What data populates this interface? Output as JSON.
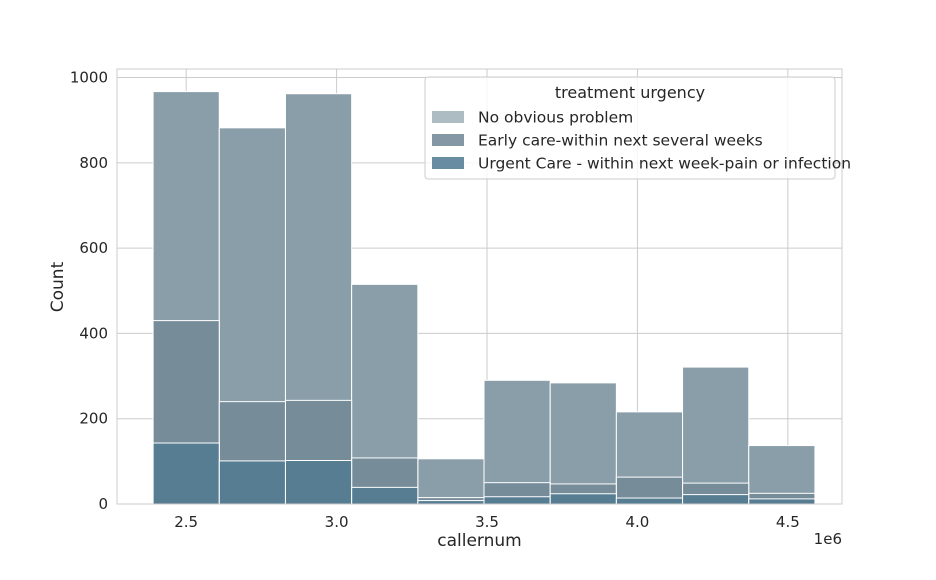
{
  "chart_data": {
    "type": "bar",
    "subtype": "overlaid-histogram",
    "title": "",
    "xlabel": "callernum",
    "ylabel": "Count",
    "x_offset_label": "1e6",
    "xlim": [
      2.27,
      4.68
    ],
    "ylim": [
      0,
      1020
    ],
    "x_ticks": [
      2.5,
      3.0,
      3.5,
      4.0,
      4.5
    ],
    "x_tick_labels": [
      "2.5",
      "3.0",
      "3.5",
      "4.0",
      "4.5"
    ],
    "y_ticks": [
      0,
      200,
      400,
      600,
      800,
      1000
    ],
    "y_tick_labels": [
      "0",
      "200",
      "400",
      "600",
      "800",
      "1000"
    ],
    "grid": true,
    "legend": {
      "title": "treatment urgency",
      "placement": "top-right"
    },
    "bin_edges": [
      2.39,
      2.61,
      2.83,
      3.05,
      3.27,
      3.49,
      3.71,
      3.93,
      4.15,
      4.37,
      4.59
    ],
    "series": [
      {
        "name": "No obvious problem",
        "color": "#8a9ea9",
        "values": [
          967,
          882,
          962,
          515,
          106,
          290,
          284,
          216,
          321,
          137
        ]
      },
      {
        "name": "Early care-within next several weeks",
        "color": "#6f8594",
        "values": [
          430,
          240,
          243,
          108,
          15,
          50,
          47,
          63,
          49,
          25
        ]
      },
      {
        "name": "Urgent Care - within next week-pain or infection",
        "color": "#4d7890",
        "values": [
          143,
          101,
          102,
          39,
          8,
          17,
          24,
          14,
          22,
          12
        ]
      }
    ]
  }
}
